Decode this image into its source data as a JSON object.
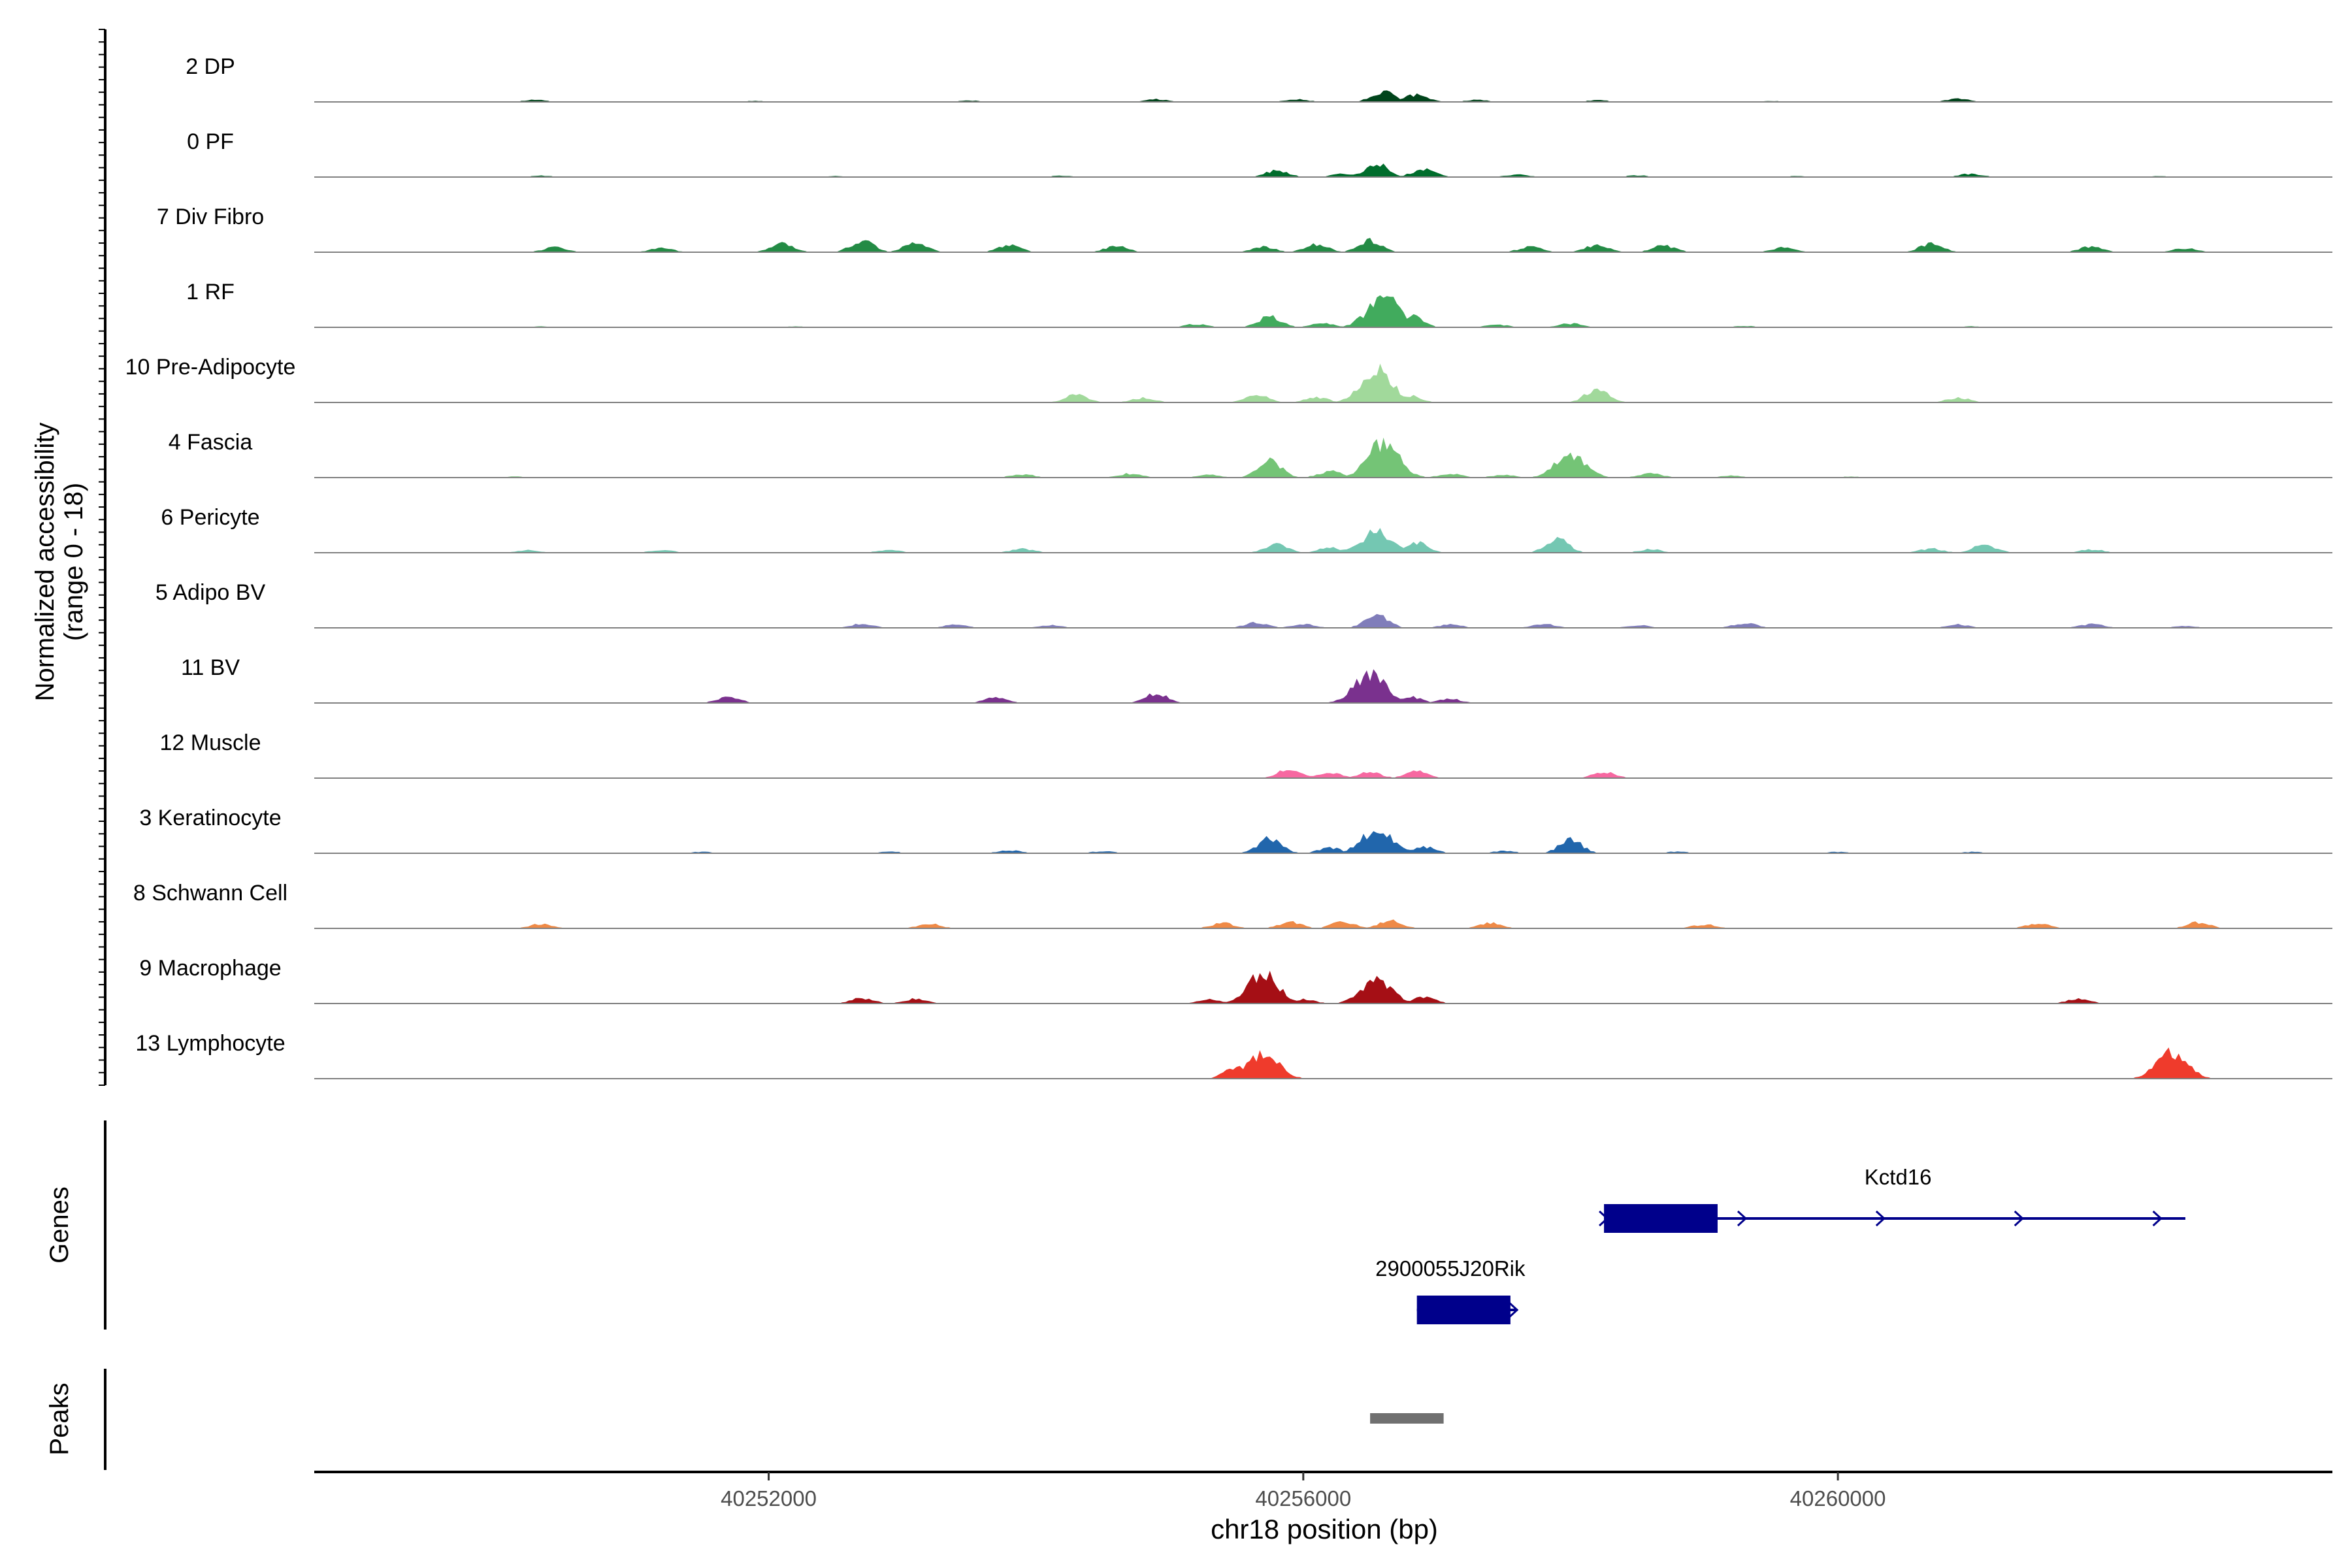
{
  "chart_data": {
    "type": "area",
    "ylabel": "Normalized accessibility",
    "ylabel_range": "(range 0 - 18)",
    "ylim": [
      0,
      18
    ],
    "xlabel": "chr18 position (bp)",
    "xlim": [
      40248600,
      40263700
    ],
    "xticks": [
      {
        "value": 40252000,
        "label": "40252000"
      },
      {
        "value": 40256000,
        "label": "40256000"
      },
      {
        "value": 40260000,
        "label": "40260000"
      }
    ],
    "gene_panel_label": "Genes",
    "peak_panel_label": "Peaks",
    "tracks": [
      {
        "name": "2 DP",
        "color": "#00441b",
        "profile": [
          [
            40250250,
            0.6
          ],
          [
            40251900,
            0.3
          ],
          [
            40253500,
            0.4
          ],
          [
            40254900,
            0.8
          ],
          [
            40255950,
            0.8
          ],
          [
            40256600,
            3.2
          ],
          [
            40256850,
            2.2
          ],
          [
            40257300,
            0.6
          ],
          [
            40258200,
            0.5
          ],
          [
            40259500,
            0.3
          ],
          [
            40260900,
            0.9
          ],
          [
            40262000,
            0.2
          ]
        ]
      },
      {
        "name": "0 PF",
        "color": "#006d2c",
        "profile": [
          [
            40250300,
            0.4
          ],
          [
            40252500,
            0.3
          ],
          [
            40254200,
            0.4
          ],
          [
            40255800,
            2.0
          ],
          [
            40256300,
            1.0
          ],
          [
            40256550,
            4.0
          ],
          [
            40256900,
            2.4
          ],
          [
            40257600,
            0.8
          ],
          [
            40258500,
            0.5
          ],
          [
            40259700,
            0.3
          ],
          [
            40261000,
            1.0
          ],
          [
            40262400,
            0.3
          ]
        ]
      },
      {
        "name": "7 Div Fibro",
        "color": "#238b45",
        "profile": [
          [
            40250400,
            1.4
          ],
          [
            40251200,
            1.2
          ],
          [
            40252100,
            2.5
          ],
          [
            40252700,
            3.5
          ],
          [
            40253100,
            3.0
          ],
          [
            40253800,
            2.0
          ],
          [
            40254600,
            1.8
          ],
          [
            40255700,
            1.6
          ],
          [
            40256100,
            2.4
          ],
          [
            40256500,
            3.5
          ],
          [
            40257700,
            1.6
          ],
          [
            40258200,
            2.2
          ],
          [
            40258700,
            2.0
          ],
          [
            40259600,
            1.6
          ],
          [
            40260700,
            2.6
          ],
          [
            40261900,
            1.8
          ],
          [
            40262600,
            1.2
          ]
        ]
      },
      {
        "name": "1 RF",
        "color": "#41ab5d",
        "profile": [
          [
            40250300,
            0.3
          ],
          [
            40252200,
            0.3
          ],
          [
            40255200,
            1.0
          ],
          [
            40255750,
            3.2
          ],
          [
            40256150,
            1.2
          ],
          [
            40256500,
            4.5
          ],
          [
            40256600,
            9.2
          ],
          [
            40256800,
            3.5
          ],
          [
            40257450,
            0.8
          ],
          [
            40258000,
            1.2
          ],
          [
            40259300,
            0.4
          ],
          [
            40261000,
            0.3
          ]
        ]
      },
      {
        "name": "10 Pre-Adipocyte",
        "color": "#a1d99b",
        "profile": [
          [
            40254300,
            2.2
          ],
          [
            40254800,
            1.4
          ],
          [
            40255650,
            2.4
          ],
          [
            40256100,
            1.5
          ],
          [
            40256550,
            10.2
          ],
          [
            40256800,
            2.0
          ],
          [
            40258200,
            4.2
          ],
          [
            40260900,
            1.4
          ]
        ]
      },
      {
        "name": "4 Fascia",
        "color": "#74c476",
        "profile": [
          [
            40250100,
            0.3
          ],
          [
            40253900,
            1.0
          ],
          [
            40254700,
            1.2
          ],
          [
            40255300,
            0.8
          ],
          [
            40255750,
            5.0
          ],
          [
            40256200,
            2.0
          ],
          [
            40256600,
            10.5
          ],
          [
            40257100,
            1.2
          ],
          [
            40257500,
            0.8
          ],
          [
            40258000,
            6.8
          ],
          [
            40258600,
            1.2
          ],
          [
            40259200,
            0.6
          ],
          [
            40260100,
            0.3
          ]
        ]
      },
      {
        "name": "6 Pericyte",
        "color": "#74c7b2",
        "profile": [
          [
            40250200,
            0.8
          ],
          [
            40251200,
            0.8
          ],
          [
            40252900,
            0.8
          ],
          [
            40253900,
            1.2
          ],
          [
            40255800,
            2.5
          ],
          [
            40256200,
            1.5
          ],
          [
            40256550,
            6.2
          ],
          [
            40256850,
            3.0
          ],
          [
            40257900,
            4.0
          ],
          [
            40258600,
            1.0
          ],
          [
            40260700,
            1.2
          ],
          [
            40261100,
            2.5
          ],
          [
            40261900,
            1.0
          ]
        ]
      },
      {
        "name": "5 Adipo BV",
        "color": "#807dba",
        "profile": [
          [
            40252700,
            1.2
          ],
          [
            40253400,
            1.0
          ],
          [
            40254100,
            0.8
          ],
          [
            40255650,
            1.6
          ],
          [
            40256000,
            1.2
          ],
          [
            40256550,
            4.0
          ],
          [
            40257100,
            1.0
          ],
          [
            40257800,
            1.2
          ],
          [
            40258500,
            0.8
          ],
          [
            40259300,
            1.5
          ],
          [
            40260900,
            1.0
          ],
          [
            40261900,
            1.2
          ],
          [
            40262600,
            0.6
          ]
        ]
      },
      {
        "name": "11 BV",
        "color": "#7a318e",
        "profile": [
          [
            40251700,
            1.8
          ],
          [
            40253700,
            1.6
          ],
          [
            40254900,
            2.8
          ],
          [
            40256500,
            9.0
          ],
          [
            40256800,
            1.8
          ],
          [
            40257100,
            1.2
          ]
        ]
      },
      {
        "name": "12 Muscle",
        "color": "#f768a1",
        "profile": [
          [
            40255900,
            2.8
          ],
          [
            40256200,
            1.6
          ],
          [
            40256500,
            1.8
          ],
          [
            40256850,
            2.0
          ],
          [
            40258250,
            1.8
          ]
        ]
      },
      {
        "name": "3 Keratinocyte",
        "color": "#2166ac",
        "profile": [
          [
            40251500,
            0.4
          ],
          [
            40252900,
            0.5
          ],
          [
            40253800,
            0.9
          ],
          [
            40254500,
            0.6
          ],
          [
            40255750,
            4.6
          ],
          [
            40256200,
            1.6
          ],
          [
            40256550,
            7.0
          ],
          [
            40256900,
            2.0
          ],
          [
            40257500,
            0.7
          ],
          [
            40258000,
            4.0
          ],
          [
            40258800,
            0.5
          ],
          [
            40260000,
            0.4
          ],
          [
            40261000,
            0.4
          ]
        ]
      },
      {
        "name": "8 Schwann Cell",
        "color": "#ef8a47",
        "profile": [
          [
            40250300,
            1.4
          ],
          [
            40253200,
            1.4
          ],
          [
            40255400,
            1.6
          ],
          [
            40255900,
            2.0
          ],
          [
            40256300,
            2.0
          ],
          [
            40256650,
            2.4
          ],
          [
            40257400,
            1.6
          ],
          [
            40259000,
            1.2
          ],
          [
            40261500,
            1.6
          ],
          [
            40262700,
            1.8
          ]
        ]
      },
      {
        "name": "9 Macrophage",
        "color": "#a50f15",
        "profile": [
          [
            40252700,
            1.6
          ],
          [
            40253100,
            1.4
          ],
          [
            40255300,
            1.2
          ],
          [
            40255700,
            9.0
          ],
          [
            40256000,
            1.2
          ],
          [
            40256550,
            7.0
          ],
          [
            40256900,
            2.0
          ],
          [
            40261800,
            1.5
          ]
        ]
      },
      {
        "name": "13 Lymphocyte",
        "color": "#ef3b2c",
        "profile": [
          [
            40255500,
            3.8
          ],
          [
            40255700,
            7.5
          ],
          [
            40262500,
            7.8
          ]
        ]
      }
    ],
    "genes": [
      {
        "name": "Kctd16",
        "start": 40258250,
        "end": 40262600,
        "strand": "+",
        "exons": [
          [
            40258250,
            40259100
          ]
        ],
        "row": 0
      },
      {
        "name": "2900055J20Rik",
        "start": 40256850,
        "end": 40257600,
        "strand": "+",
        "exons": [
          [
            40256850,
            40257550
          ]
        ],
        "row": 1
      }
    ],
    "peaks": [
      [
        40256500,
        40257050
      ]
    ]
  }
}
